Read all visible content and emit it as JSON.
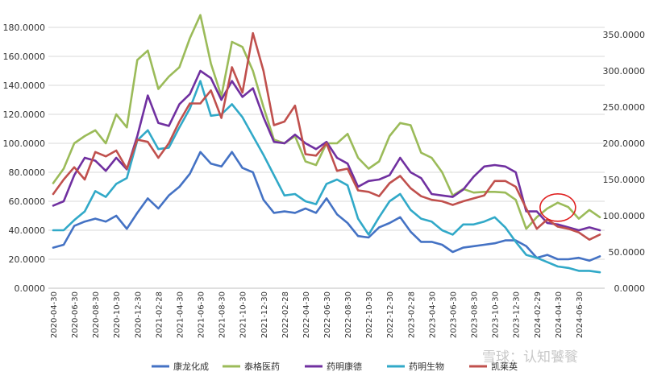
{
  "chart_data": {
    "type": "line",
    "x": [
      "2020-04-30",
      "2020-05-31",
      "2020-06-30",
      "2020-07-31",
      "2020-08-31",
      "2020-09-30",
      "2020-10-30",
      "2020-11-30",
      "2020-12-31",
      "2021-01-31",
      "2021-02-28",
      "2021-03-31",
      "2021-04-30",
      "2021-05-31",
      "2021-06-30",
      "2021-07-31",
      "2021-08-31",
      "2021-09-30",
      "2021-10-31",
      "2021-11-30",
      "2021-12-31",
      "2022-01-31",
      "2022-02-28",
      "2022-03-31",
      "2022-04-30",
      "2022-05-31",
      "2022-06-30",
      "2022-07-31",
      "2022-08-31",
      "2022-09-30",
      "2022-10-31",
      "2022-11-30",
      "2022-12-31",
      "2023-01-31",
      "2023-02-28",
      "2023-03-31",
      "2023-04-30",
      "2023-05-31",
      "2023-06-30",
      "2023-07-31",
      "2023-08-31",
      "2023-09-30",
      "2023-10-31",
      "2023-11-30",
      "2023-12-31",
      "2024-01-31",
      "2024-02-29",
      "2024-03-31",
      "2024-04-30",
      "2024-05-31",
      "2024-06-30",
      "2024-07-31",
      "2024-08-31"
    ],
    "x_tick_labels": [
      "2020-04-30",
      "2020-06-30",
      "2020-08-30",
      "2020-10-30",
      "2020-12-30",
      "2021-02-28",
      "2021-04-30",
      "2021-06-30",
      "2021-08-30",
      "2021-10-30",
      "2021-12-30",
      "2022-02-28",
      "2022-04-30",
      "2022-06-30",
      "2022-08-30",
      "2022-10-30",
      "2022-12-30",
      "2023-02-28",
      "2023-04-30",
      "2023-06-30",
      "2023-08-30",
      "2023-10-30",
      "2023-12-30",
      "2024-02-29",
      "2024-04-30",
      "2024-06-30"
    ],
    "y_left": {
      "ticks": [
        "0.0000",
        "20.0000",
        "40.0000",
        "60.0000",
        "80.0000",
        "100.0000",
        "120.0000",
        "140.0000",
        "160.0000",
        "180.0000"
      ],
      "ylim": [
        0,
        190
      ]
    },
    "y_right": {
      "ticks": [
        "0.0000",
        "50.0000",
        "100.0000",
        "150.0000",
        "200.0000",
        "250.0000",
        "300.0000",
        "350.0000"
      ],
      "ylim": [
        0,
        380
      ]
    },
    "series": [
      {
        "name": "康龙化成",
        "color": "#4472c4",
        "axis": "left",
        "values": [
          28,
          30,
          43,
          46,
          48,
          46,
          50,
          41,
          52,
          62,
          55,
          64,
          70,
          79,
          94,
          86,
          84,
          94,
          83,
          80,
          61,
          52,
          53,
          52,
          55,
          52,
          62,
          51,
          45,
          36,
          35,
          42,
          45,
          49,
          39,
          32,
          32,
          30,
          25,
          28,
          29,
          30,
          31,
          33,
          33,
          29,
          21,
          23,
          20,
          20,
          21,
          19,
          22
        ]
      },
      {
        "name": "泰格医药",
        "color": "#9bbb59",
        "axis": "right",
        "values": [
          145,
          165,
          200,
          210,
          218,
          200,
          240,
          222,
          315,
          328,
          275,
          292,
          305,
          345,
          377,
          310,
          265,
          340,
          333,
          300,
          250,
          205,
          200,
          210,
          175,
          170,
          200,
          200,
          213,
          180,
          165,
          175,
          210,
          228,
          225,
          187,
          180,
          160,
          128,
          137,
          132,
          133,
          133,
          132,
          122,
          82,
          98,
          110,
          118,
          112,
          96,
          108,
          98
        ]
      },
      {
        "name": "药明康德",
        "color": "#7030a0",
        "axis": "left",
        "values": [
          57,
          60,
          78,
          90,
          88,
          81,
          90,
          82,
          105,
          133,
          114,
          112,
          127,
          134,
          150,
          145,
          130,
          143,
          132,
          138,
          118,
          101,
          100,
          106,
          100,
          96,
          101,
          90,
          86,
          70,
          74,
          75,
          78,
          90,
          80,
          76,
          65,
          64,
          63,
          68,
          77,
          84,
          85,
          84,
          80,
          53,
          53,
          45,
          44,
          42,
          40,
          42,
          40
        ]
      },
      {
        "name": "药明生物",
        "color": "#31a9c8",
        "axis": "left",
        "values": [
          40,
          40,
          47,
          53,
          67,
          63,
          72,
          76,
          102,
          109,
          96,
          97,
          111,
          124,
          143,
          119,
          120,
          127,
          118,
          105,
          92,
          78,
          64,
          65,
          60,
          58,
          72,
          75,
          71,
          48,
          37,
          49,
          60,
          65,
          54,
          48,
          46,
          40,
          37,
          44,
          44,
          46,
          49,
          42,
          32,
          23,
          21,
          18,
          15,
          14,
          12,
          12,
          11
        ]
      },
      {
        "name": "凯莱英",
        "color": "#c0504d",
        "axis": "right",
        "values": [
          130,
          150,
          167,
          150,
          188,
          182,
          190,
          165,
          205,
          202,
          180,
          200,
          230,
          255,
          255,
          273,
          235,
          305,
          270,
          352,
          300,
          225,
          230,
          252,
          185,
          183,
          200,
          162,
          165,
          135,
          133,
          127,
          145,
          155,
          138,
          127,
          122,
          120,
          115,
          120,
          124,
          128,
          148,
          148,
          140,
          110,
          82,
          95,
          85,
          82,
          77,
          67,
          74
        ]
      }
    ]
  },
  "annotation": {
    "shape": "circle",
    "color": "#e02020"
  },
  "watermark": {
    "text": "雪球：认知饕餮"
  }
}
